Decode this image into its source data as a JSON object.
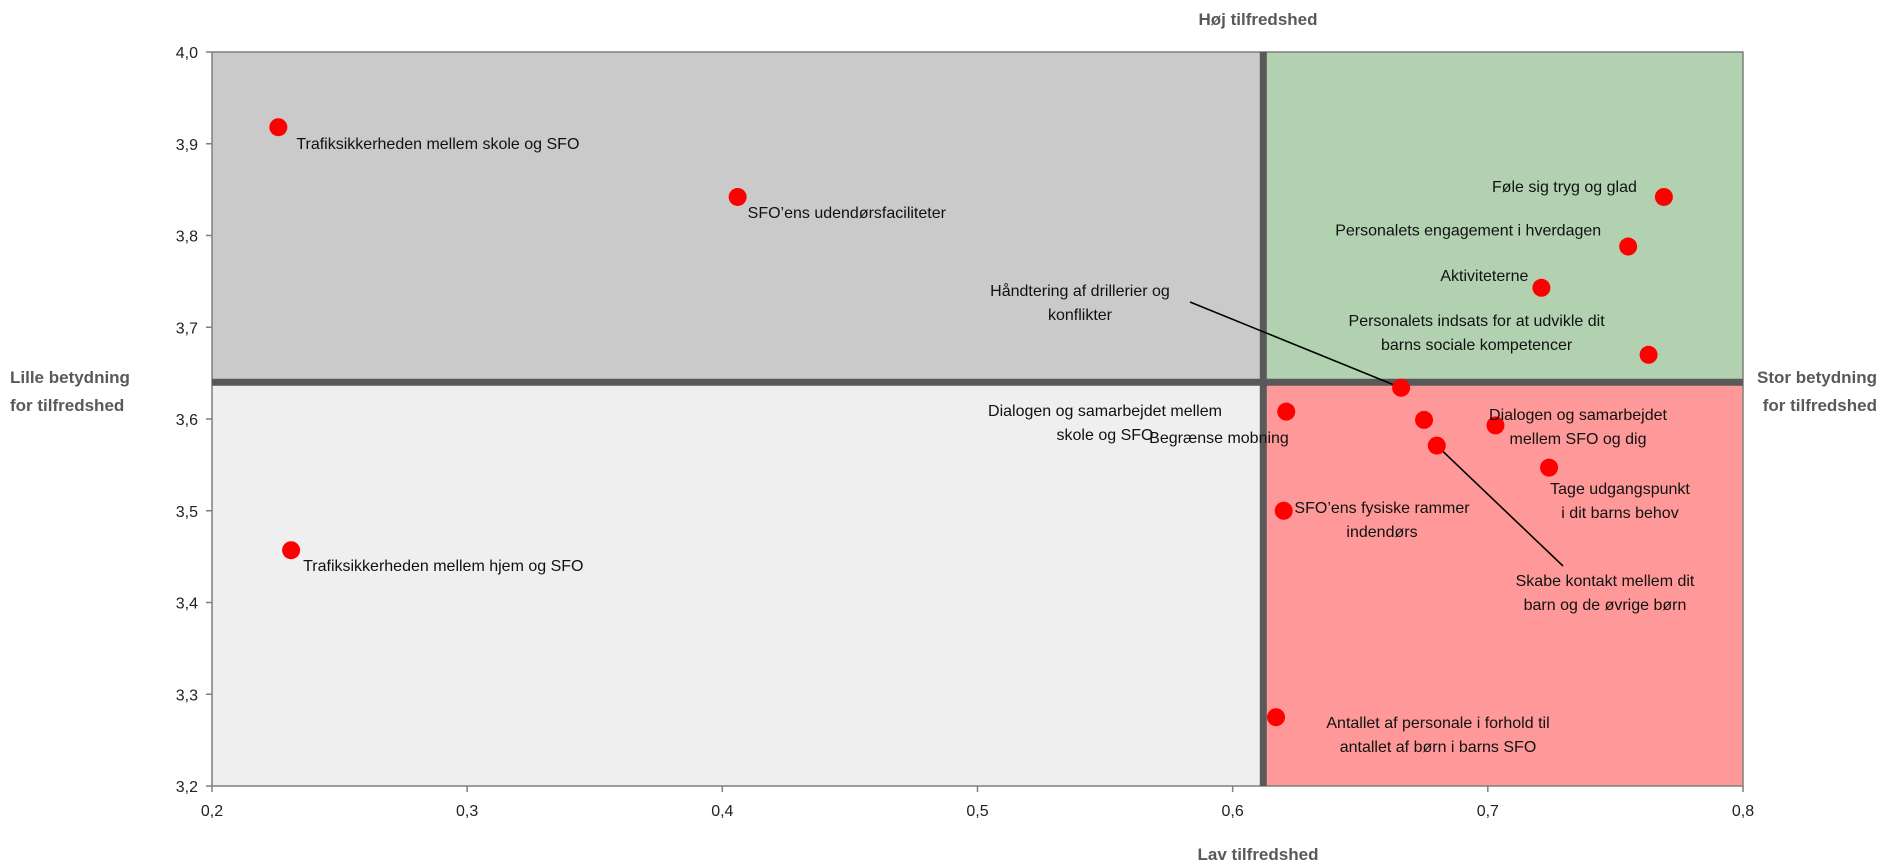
{
  "chart_data": {
    "type": "scatter",
    "title": "",
    "xlabel": "",
    "ylabel": "",
    "xlim": [
      0.2,
      0.8
    ],
    "ylim": [
      3.2,
      4.0
    ],
    "xticks": [
      "0,2",
      "0,3",
      "0,4",
      "0,5",
      "0,6",
      "0,7",
      "0,8"
    ],
    "yticks": [
      "3,2",
      "3,3",
      "3,4",
      "3,5",
      "3,6",
      "3,7",
      "3,8",
      "3,9",
      "4,0"
    ],
    "divider": {
      "x": 0.612,
      "y": 3.64
    },
    "quadrant_labels": {
      "top": "Høj tilfredshed",
      "bottom": "Lav tilfredshed",
      "left": [
        "Lille betydning",
        "for tilfredshed"
      ],
      "right": [
        "Stor betydning",
        "for tilfredshed"
      ]
    },
    "colors": {
      "top_left": "#cacaca",
      "bottom_left": "#efefef",
      "top_right": "#b1d1b0",
      "bottom_right": "#ff9999",
      "point": "#ff0000",
      "divider": "#595959"
    },
    "points": [
      {
        "label": [
          "Trafiksikkerheden mellem skole og SFO"
        ],
        "x": 0.226,
        "y": 3.918
      },
      {
        "label": [
          "SFO’ens udendørsfaciliteter"
        ],
        "x": 0.406,
        "y": 3.842
      },
      {
        "label": [
          "Trafiksikkerheden mellem hjem og SFO"
        ],
        "x": 0.231,
        "y": 3.457
      },
      {
        "label": [
          "Føle sig tryg og glad"
        ],
        "x": 0.769,
        "y": 3.842
      },
      {
        "label": [
          "Personalets engagement i hverdagen"
        ],
        "x": 0.755,
        "y": 3.788
      },
      {
        "label": [
          "Aktiviteterne"
        ],
        "x": 0.721,
        "y": 3.743
      },
      {
        "label": [
          "Personalets indsats for at udvikle dit",
          "barns sociale kompetencer"
        ],
        "x": 0.763,
        "y": 3.67
      },
      {
        "label": [
          "Håndtering af drillerier og",
          "konflikter"
        ],
        "x": 0.666,
        "y": 3.634
      },
      {
        "label": [
          "Dialogen og samarbejdet mellem",
          "skole og SFO"
        ],
        "x": 0.621,
        "y": 3.608
      },
      {
        "label": [
          "Begrænse mobning"
        ],
        "x": 0.675,
        "y": 3.599
      },
      {
        "label": [
          "Skabe kontakt mellem dit",
          "barn og de øvrige børn"
        ],
        "x": 0.68,
        "y": 3.571
      },
      {
        "label": [
          "Dialogen og samarbejdet",
          "mellem SFO og dig"
        ],
        "x": 0.703,
        "y": 3.593
      },
      {
        "label": [
          "Tage udgangspunkt",
          "i dit barns behov"
        ],
        "x": 0.724,
        "y": 3.547
      },
      {
        "label": [
          "SFO’ens fysiske rammer",
          "indendørs"
        ],
        "x": 0.62,
        "y": 3.5
      },
      {
        "label": [
          "Antallet af personale i forhold til",
          "antallet af børn i barns SFO"
        ],
        "x": 0.617,
        "y": 3.275
      }
    ]
  }
}
